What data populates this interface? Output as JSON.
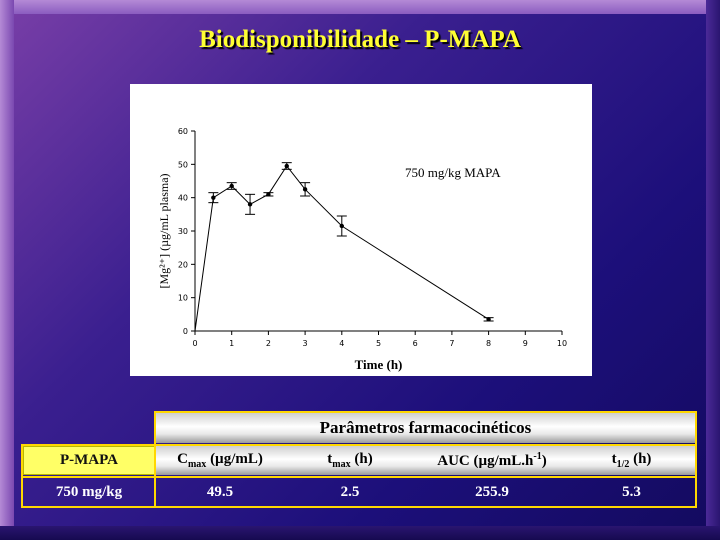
{
  "title": "Biodisponibilidade – P-MAPA",
  "chart_data": {
    "type": "line",
    "annotation": "750 mg/kg MAPA",
    "xlabel": "Time (h)",
    "ylabel": "[Mg²⁺] (µg/mL plasma)",
    "xlim": [
      0,
      10
    ],
    "ylim": [
      0,
      60
    ],
    "x_ticks": [
      0,
      1,
      2,
      3,
      4,
      5,
      6,
      7,
      8,
      9,
      10
    ],
    "y_ticks": [
      0,
      10,
      20,
      30,
      40,
      50,
      60
    ],
    "series": [
      {
        "points": [
          {
            "x": 0,
            "y": 0
          },
          {
            "x": 0.5,
            "y": 40,
            "err": 1.5
          },
          {
            "x": 1,
            "y": 43.5,
            "err": 1
          },
          {
            "x": 1.5,
            "y": 38,
            "err": 3
          },
          {
            "x": 2,
            "y": 41,
            "err": 0.5
          },
          {
            "x": 2.5,
            "y": 49.5,
            "err": 1
          },
          {
            "x": 3,
            "y": 42.5,
            "err": 2
          },
          {
            "x": 4,
            "y": 31.5,
            "err": 3
          },
          {
            "x": 8,
            "y": 3.5,
            "err": 0.5
          }
        ]
      }
    ],
    "grid": false
  },
  "table": {
    "group_header": "Parâmetros farmacocinéticos",
    "row_header_label": "P-MAPA",
    "columns": [
      {
        "main": "C",
        "sub": "max",
        "rest": " (µg/mL)"
      },
      {
        "main": "t",
        "sub": "max",
        "rest": " (h)"
      },
      {
        "main": "AUC (µg/mL.h",
        "sup": "-1",
        "rest": ")"
      },
      {
        "main": "t",
        "sub": "1/2",
        "rest": " (h)"
      }
    ],
    "row_label": "750 mg/kg",
    "values": [
      "49.5",
      "2.5",
      "255.9",
      "5.3"
    ]
  }
}
